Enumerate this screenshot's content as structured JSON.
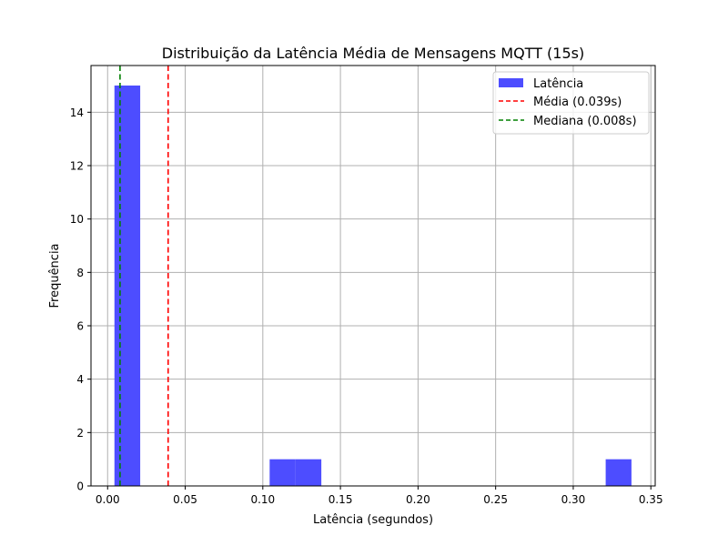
{
  "chart_data": {
    "type": "bar",
    "title": "Distribuição da Latência Média de Mensagens MQTT (15s)",
    "xlabel": "Latência (segundos)",
    "ylabel": "Frequência",
    "xlim": [
      -0.0107,
      0.3528
    ],
    "ylim": [
      0,
      15.75
    ],
    "xticks": [
      0.0,
      0.05,
      0.1,
      0.15,
      0.2,
      0.25,
      0.3,
      0.35
    ],
    "xtick_labels": [
      "0.00",
      "0.05",
      "0.10",
      "0.15",
      "0.20",
      "0.25",
      "0.30",
      "0.35"
    ],
    "yticks": [
      0,
      2,
      4,
      6,
      8,
      10,
      12,
      14
    ],
    "ytick_labels": [
      "0",
      "2",
      "4",
      "6",
      "8",
      "10",
      "12",
      "14"
    ],
    "grid": true,
    "legend_position": "top-right",
    "bins": [
      {
        "x0": 0.0044,
        "x1": 0.021,
        "count": 15
      },
      {
        "x0": 0.1044,
        "x1": 0.121,
        "count": 1
      },
      {
        "x0": 0.121,
        "x1": 0.1377,
        "count": 1
      },
      {
        "x0": 0.3209,
        "x1": 0.3375,
        "count": 1
      }
    ],
    "series": [
      {
        "name": "Latência",
        "color": "#4d4dff",
        "kind": "histogram"
      }
    ],
    "reference_lines": [
      {
        "name": "Média (0.039s)",
        "value": 0.039,
        "color": "#ff0000",
        "style": "dashed"
      },
      {
        "name": "Mediana (0.008s)",
        "value": 0.008,
        "color": "#008000",
        "style": "dashed"
      }
    ]
  }
}
